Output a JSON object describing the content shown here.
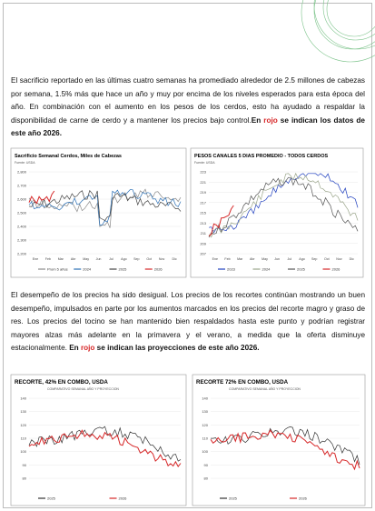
{
  "paragraphs": [
    {
      "text": "El sacrificio reportado en las últimas cuatro semanas ha promediado alrededor de 2.5 millones de cabezas por semana, 1.5% más que hace un año y muy por encima de los niveles esperados para esta época del año. En combinación con el aumento en los pesos de los cerdos, esto ha ayudado a respaldar la disponibilidad de carne de cerdo y a mantener los precios bajo control.",
      "before": "En ",
      "red": "rojo",
      "after": " se indican los datos de este año 2026."
    },
    {
      "text": "El desempeño de los precios ha sido desigual. Los precios de los recortes continúan mostrando un buen desempeño, impulsados en parte por los aumentos marcados en los precios del recorte magro y graso de res. Los precios del tocino se han mantenido bien respaldados hasta este punto y podrían registrar mayores alzas más adelante en la primavera y el verano, a medida que la oferta disminuye estacionalmente.",
      "before": "En ",
      "red": "rojo",
      "after": " se indican las proyecciones de este año 2026."
    }
  ],
  "charts": [
    {
      "title": "Sacrificio Semanal Cerdos, Miles de Cabezas",
      "source": "Fuente: USDA",
      "yticks": [
        "2,800",
        "2,700",
        "2,600",
        "2,500",
        "2,400",
        "2,300",
        "2,200"
      ],
      "months": [
        "Ene",
        "Feb",
        "Mar",
        "Abr",
        "May",
        "Jun",
        "Jul",
        "Ago",
        "Sep",
        "Oct",
        "Nov",
        "Dic"
      ],
      "series": [
        {
          "name": "Prom 5 años",
          "color": "#8a8a8a"
        },
        {
          "name": "2024",
          "color": "#2a6fb5"
        },
        {
          "name": "2025",
          "color": "#444444"
        },
        {
          "name": "2026",
          "color": "#d62728"
        }
      ]
    },
    {
      "title": "PESOS CANALES 5 DIAS PROMEDIO - TODOS CERDOS",
      "source": "Fuente: USDA",
      "yticks": [
        "223",
        "221",
        "219",
        "217",
        "215",
        "213",
        "211",
        "209",
        "207"
      ],
      "months": [
        "Ene",
        "Feb",
        "Mar",
        "Abr",
        "May",
        "Jun",
        "Jul",
        "Ago",
        "Sep",
        "Oct",
        "Nov",
        "Dic"
      ],
      "series": [
        {
          "name": "2023",
          "color": "#1f3fbf"
        },
        {
          "name": "2024",
          "color": "#9aa58a"
        },
        {
          "name": "2025",
          "color": "#555555"
        },
        {
          "name": "2026",
          "color": "#d62728"
        }
      ]
    },
    {
      "title": "RECORTE, 42% EN COMBO, USDA",
      "source": "COMPARATIVO SEMANAL AÑO Y PROYECCION",
      "yticks": [
        "140",
        "130",
        "120",
        "110",
        "100",
        "90",
        "80"
      ],
      "months": [],
      "series": [
        {
          "name": "2025",
          "color": "#333333"
        },
        {
          "name": "2026",
          "color": "#d62728"
        }
      ]
    },
    {
      "title": "RECORTE 72% EN COMBO, USDA",
      "source": "COMPARATIVO SEMANAL AÑO Y PROYECCION",
      "yticks": [
        "140",
        "130",
        "120",
        "110",
        "100",
        "90",
        "80"
      ],
      "months": [],
      "series": [
        {
          "name": "2025",
          "color": "#333333"
        },
        {
          "name": "2026",
          "color": "#d62728"
        }
      ]
    }
  ]
}
